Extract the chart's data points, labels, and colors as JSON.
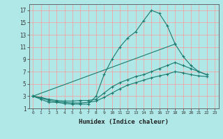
{
  "xlabel": "Humidex (Indice chaleur)",
  "background_color": "#b0e8e8",
  "grid_color": "#ff9999",
  "line_color": "#1a7a6e",
  "xlim": [
    -0.5,
    23.5
  ],
  "ylim": [
    1,
    18
  ],
  "xticks": [
    0,
    1,
    2,
    3,
    4,
    5,
    6,
    7,
    8,
    9,
    10,
    11,
    12,
    13,
    14,
    15,
    16,
    17,
    18,
    19,
    20,
    21,
    22,
    23
  ],
  "yticks": [
    1,
    3,
    5,
    7,
    9,
    11,
    13,
    15,
    17
  ],
  "curves": [
    {
      "x": [
        0,
        1,
        2,
        3,
        4,
        5,
        6,
        7,
        8,
        9,
        10,
        11,
        12,
        13,
        14,
        15,
        16,
        17,
        18
      ],
      "y": [
        3.0,
        2.5,
        2.0,
        2.0,
        1.8,
        1.7,
        1.7,
        1.7,
        3.0,
        6.5,
        9.0,
        11.0,
        12.5,
        13.5,
        15.3,
        17.0,
        16.5,
        14.5,
        11.5
      ]
    },
    {
      "x": [
        0,
        18,
        19,
        20,
        21,
        22
      ],
      "y": [
        3.0,
        11.5,
        9.5,
        8.0,
        7.0,
        6.5
      ]
    },
    {
      "x": [
        0,
        1,
        2,
        3,
        4,
        5,
        6,
        7,
        8,
        9,
        10,
        11,
        12,
        13,
        14,
        15,
        16,
        17,
        18,
        19,
        20,
        21,
        22
      ],
      "y": [
        3.0,
        2.8,
        2.5,
        2.3,
        2.2,
        2.2,
        2.3,
        2.3,
        2.5,
        3.5,
        4.5,
        5.2,
        5.7,
        6.2,
        6.5,
        7.0,
        7.5,
        8.0,
        8.5,
        8.0,
        7.5,
        7.0,
        6.5
      ]
    },
    {
      "x": [
        0,
        1,
        2,
        3,
        4,
        5,
        6,
        7,
        8,
        9,
        10,
        11,
        12,
        13,
        14,
        15,
        16,
        17,
        18,
        19,
        20,
        21,
        22
      ],
      "y": [
        3.0,
        2.7,
        2.3,
        2.1,
        2.0,
        1.9,
        1.9,
        2.0,
        2.2,
        2.8,
        3.5,
        4.2,
        4.8,
        5.2,
        5.6,
        6.0,
        6.3,
        6.6,
        7.0,
        6.8,
        6.5,
        6.3,
        6.2
      ]
    }
  ]
}
